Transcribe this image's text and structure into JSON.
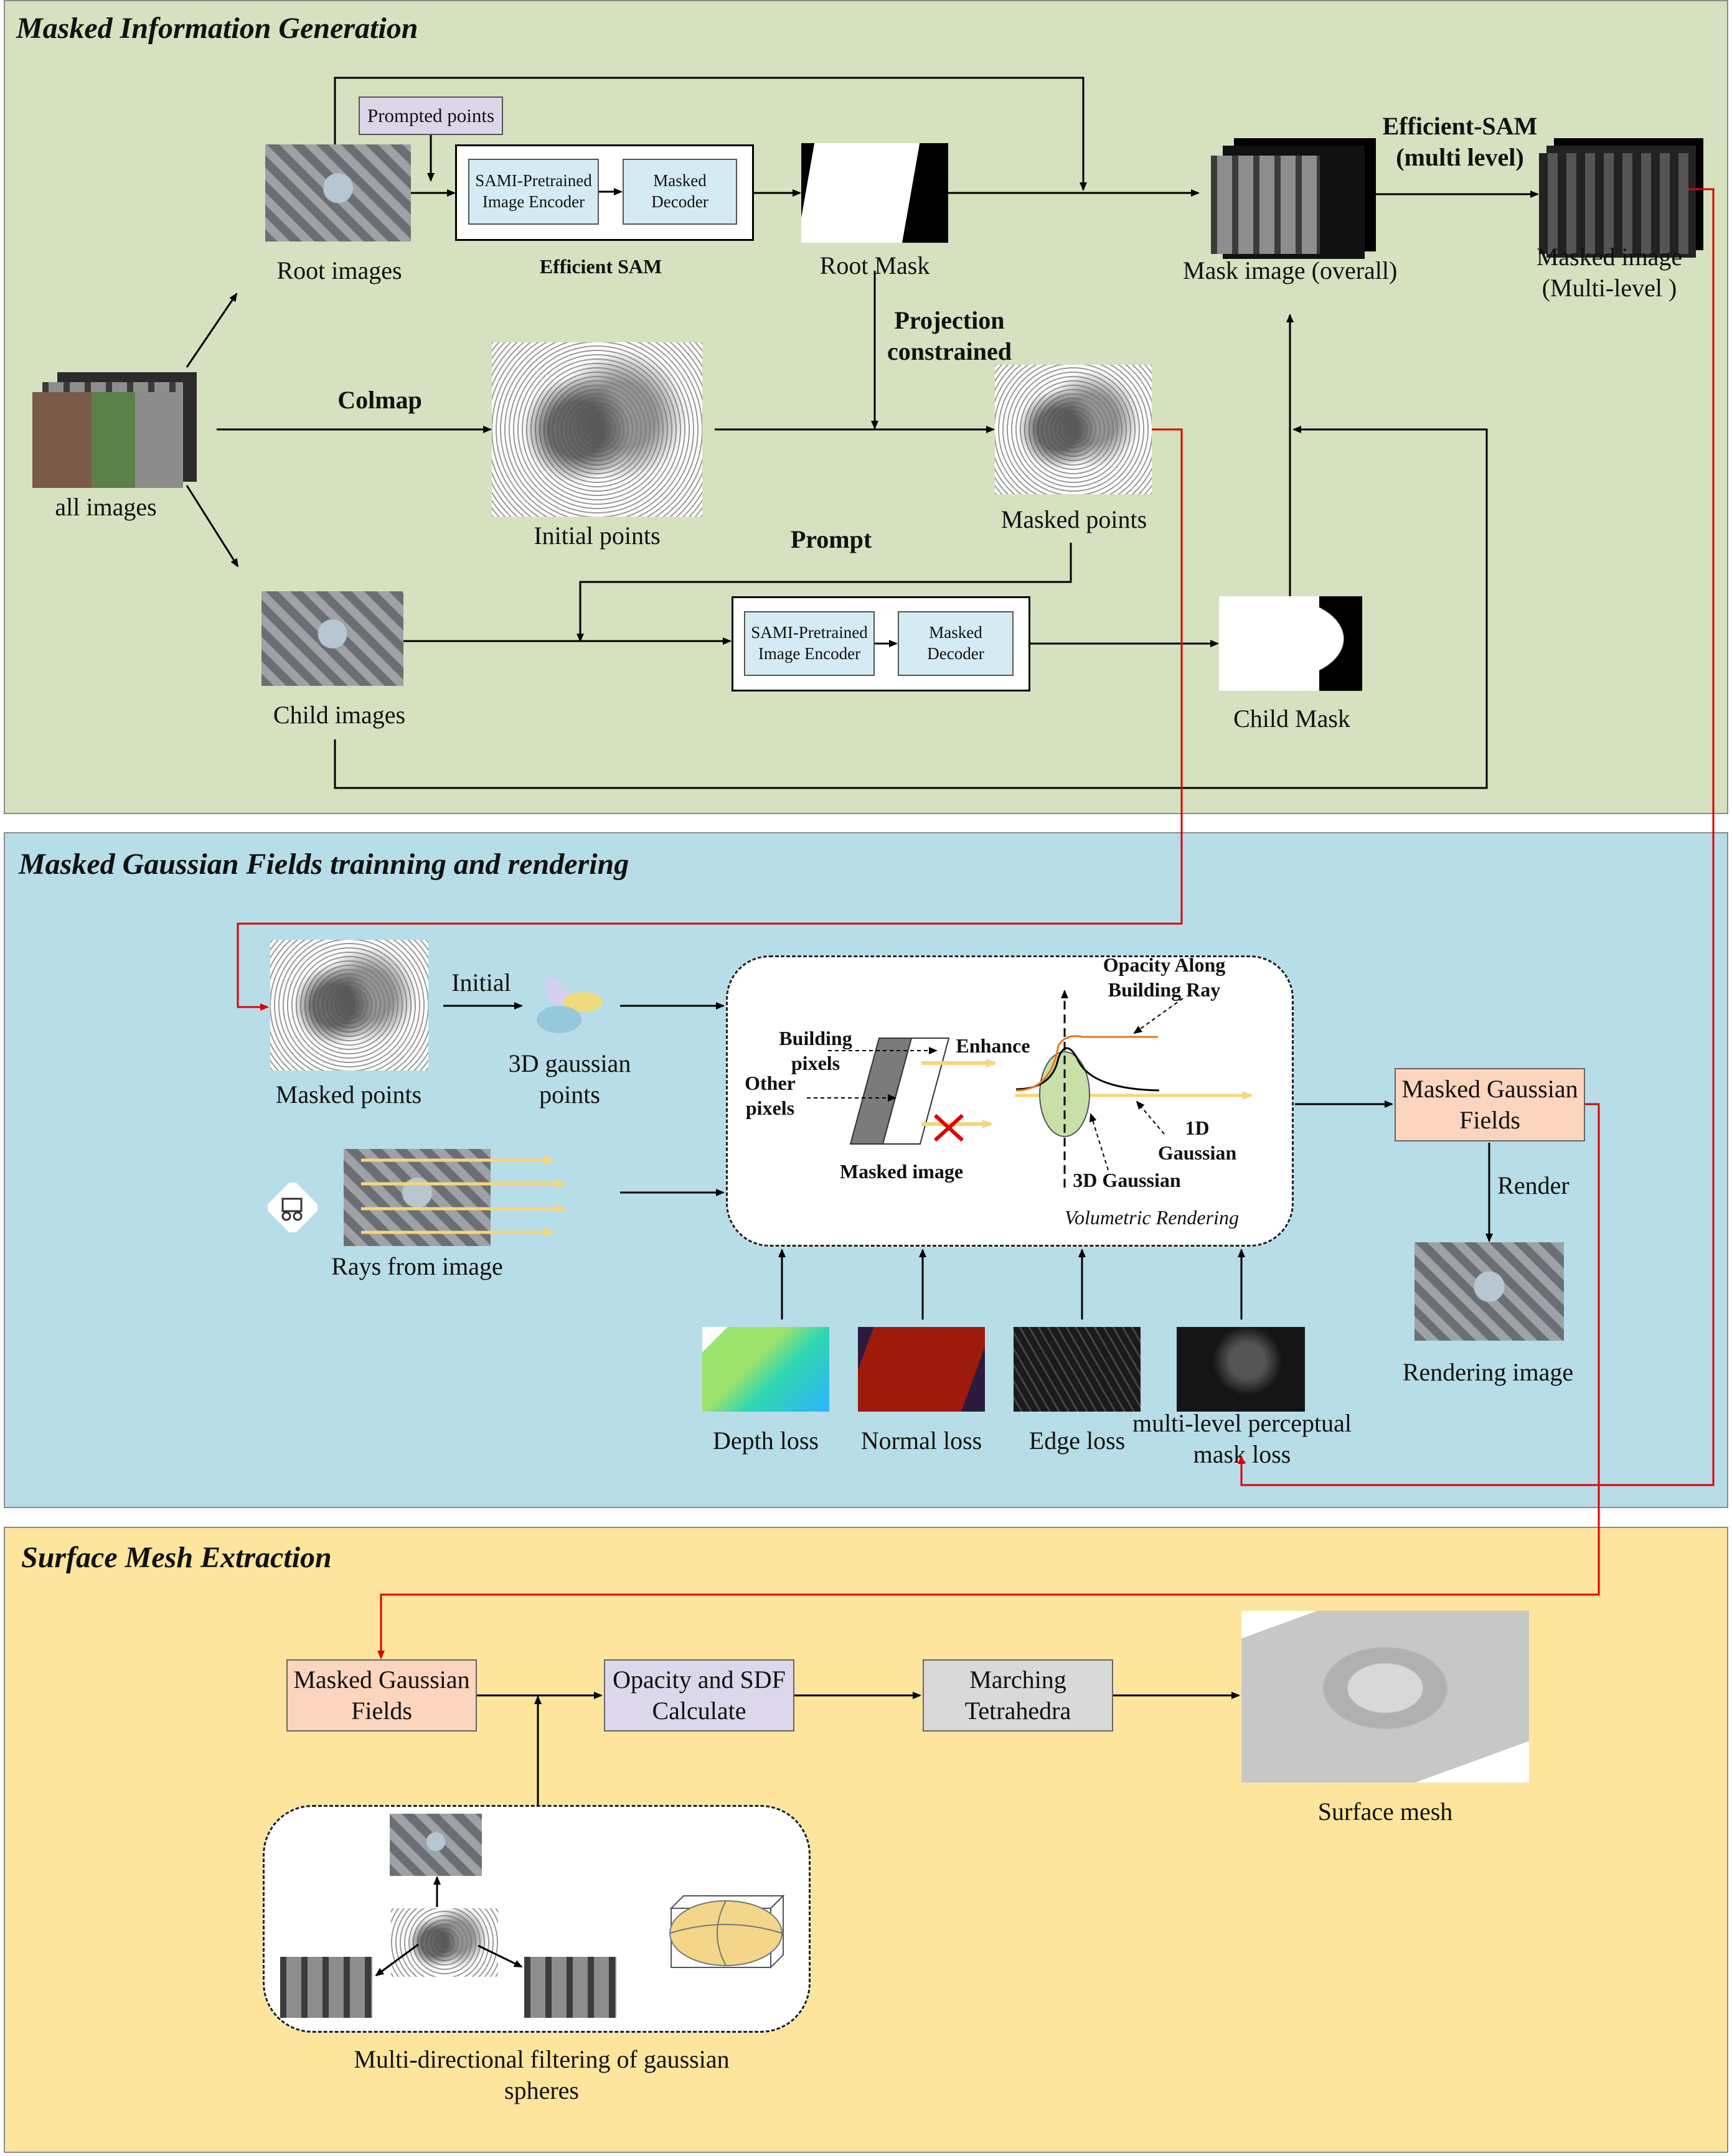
{
  "sections": {
    "info_generation": "Masked Information Generation",
    "gaussian_fields": "Masked Gaussian Fields trainning and rendering",
    "mesh_extraction": "Surface Mesh Extraction"
  },
  "info_generation": {
    "prompted_points": "Prompted points",
    "root_images": "Root images",
    "encoder": "SAMI-Pretrained Image Encoder",
    "decoder": "Masked Decoder",
    "efficient_sam": "Efficient SAM",
    "root_mask": "Root Mask",
    "mask_image_overall": "Mask image (overall)",
    "efficient_sam_multi": "Efficient-SAM (multi level)",
    "masked_image_multi": "Masked image (Multi-level )",
    "all_images": "all images",
    "colmap": "Colmap",
    "initial_points": "Initial points",
    "projection_constrained": "Projection constrained",
    "masked_points": "Masked points",
    "prompt": "Prompt",
    "child_images": "Child images",
    "child_mask": "Child Mask"
  },
  "gaussian_fields": {
    "masked_points": "Masked points",
    "initial": "Initial",
    "gaussian_points": "3D gaussian points",
    "rays_from_image": "Rays from  image",
    "building_pixels": "Building pixels",
    "other_pixels": "Other pixels",
    "enhance": "Enhance",
    "masked_image": "Masked image",
    "opacity_along_ray": "Opacity Along Building Ray",
    "gaussian_1d": "1D Gaussian",
    "gaussian_3d": "3D Gaussian",
    "volumetric_rendering": "Volumetric Rendering",
    "masked_gaussian_fields": "Masked Gaussian Fields",
    "render": "Render",
    "rendering_image": "Rendering image",
    "depth_loss": "Depth loss",
    "normal_loss": "Normal loss",
    "edge_loss": "Edge loss",
    "perceptual_loss": "multi-level perceptual mask loss"
  },
  "mesh_extraction": {
    "masked_gaussian_fields": "Masked Gaussian Fields",
    "opacity_sdf": "Opacity and SDF Calculate",
    "marching_tetrahedra": "Marching Tetrahedra",
    "surface_mesh": "Surface mesh",
    "multi_directional_filtering": "Multi-directional filtering of gaussian spheres"
  },
  "colors": {
    "panel1": "#d5e1bf",
    "panel2": "#b7dde8",
    "panel3": "#fde59e",
    "red_connector": "#e00000",
    "salmon_box": "#fbd5bd",
    "lavender_box": "#dcd7ea",
    "gray_box": "#d9d9d9",
    "light_blue_box": "#d4ebf3"
  }
}
